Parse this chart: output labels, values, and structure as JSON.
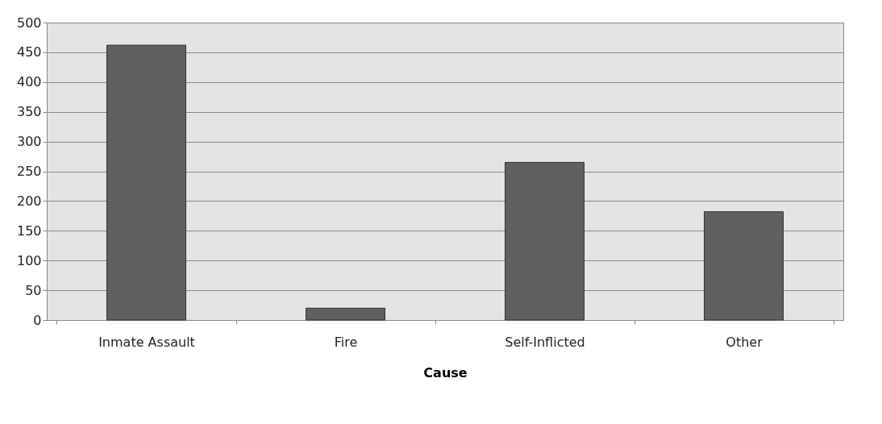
{
  "chart_data": {
    "type": "bar",
    "xlabel": "Cause",
    "categories": [
      "Inmate Assault",
      "Fire",
      "Self-Inflicted",
      "Other"
    ],
    "values": [
      462,
      20,
      265,
      182
    ],
    "color": "#606060",
    "ylim": [
      0,
      500
    ],
    "yticks": [
      0,
      50,
      100,
      150,
      200,
      250,
      300,
      350,
      400,
      450,
      500
    ],
    "grid": "y"
  }
}
